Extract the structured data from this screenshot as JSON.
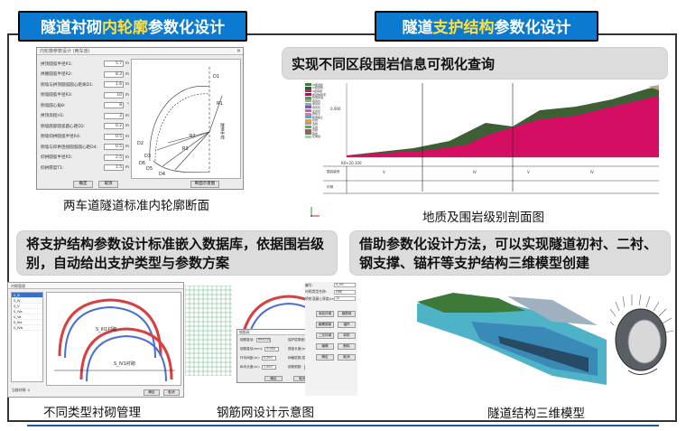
{
  "header": {
    "left": {
      "prefix": "隧道衬砌",
      "highlight": "内轮廓",
      "suffix": "参数化设计"
    },
    "right": {
      "prefix": "隧道",
      "highlight": "支护结构",
      "suffix": "参数化设计"
    }
  },
  "banners": {
    "geo": "实现不同区段围岩信息可视化查询",
    "db": "将支护结构参数设计标准嵌入数据库，依据围岩级别，自动给出支护类型与参数方案",
    "param": "借助参数化设计方法，可以实现隧道初衬、二衬、钢支撑、锚杆等支护结构三维模型创建"
  },
  "captions": {
    "contour": "两车道隧道标准内轮廓断面",
    "geo": "地质及围岩级别剖面图",
    "lining": "不同类型衬砌管理",
    "rebar": "钢筋网设计示意图",
    "model": "隧道结构三维模型"
  },
  "contour_dialog": {
    "title": "内轮廓参数设计 (两车道)",
    "rows": [
      {
        "label": "拱顶圆弧半径R1:",
        "value": "5.7",
        "unit": "m"
      },
      {
        "label": "拱腰圆弧半径R2:",
        "value": "8.2",
        "unit": "m"
      },
      {
        "label": "侧墙与拱顶圆弧圆心距离D1:",
        "value": "1.6",
        "unit": "m"
      },
      {
        "label": "侧墙圆弧半径R3:",
        "value": "10",
        "unit": "m"
      },
      {
        "label": "侧墙圆心角θ:",
        "value": "8",
        "unit": "°"
      },
      {
        "label": "拱顶高程H1:",
        "value": "2",
        "unit": "m"
      },
      {
        "label": "侧墙底部圆弧圆心距D2:",
        "value": "0.2",
        "unit": "m"
      },
      {
        "label": "侧墙仰拱圆弧半径R4:",
        "value": "0.5",
        "unit": "m"
      },
      {
        "label": "侧墙与仰拱连接圆弧圆心距D4:",
        "value": "0.5",
        "unit": "m"
      },
      {
        "label": "仰拱圆弧半径R5:",
        "value": "2.5",
        "unit": "m"
      },
      {
        "label": "仰拱厚度T1:",
        "value": "1.5",
        "unit": "m"
      }
    ],
    "drawing_labels": [
      "D1",
      "R1",
      "R2",
      "D2",
      "D3",
      "D4",
      "D5",
      "D6",
      "R3"
    ],
    "side_text": "隧道中线",
    "buttons": {
      "ok": "确定",
      "cancel": "取消",
      "contour_fig": "断面示意图"
    }
  },
  "geo_chart": {
    "legend": [
      "III级围岩",
      "IV级围岩",
      "V级围岩",
      "断层破碎带",
      "软弱夹层",
      "强风化",
      "中风化",
      "弱风化",
      "全风化",
      "残积土",
      "粉质黏土",
      "砂岩",
      "泥岩",
      "灰岩",
      "页岩",
      "砾岩",
      "花岗岩"
    ],
    "legend_colors": [
      "#3b7a3b",
      "#2e5e2e",
      "#d01a6a",
      "#c1005c",
      "#6a8e5a",
      "#8bb07a",
      "#9aa0c8",
      "#7d5fa0",
      "#b06ab0",
      "#ff66aa",
      "#58a3c8",
      "#e0a050",
      "#a0a0a0",
      "#50b050",
      "#c05050",
      "#707070",
      "#a0d0a0"
    ],
    "y_tick": "0.000",
    "x_tick": "K0+20.100",
    "table_row_labels": [
      "围岩级别",
      "衬砌"
    ],
    "grade_labels": [
      "V",
      "IV",
      "V",
      "IV"
    ]
  },
  "lining_ui": {
    "title": "衬砌管理",
    "list_items": [
      "S_III",
      "S_IV",
      "S_V",
      "S_IVa",
      "S_Va",
      "S_IIIa",
      "S_IVb"
    ],
    "labels": {
      "upper": "S_III1衬砌",
      "lower": "S_IV1衬砌"
    },
    "bottom_label": "当前衬砌: 0",
    "buttons": {
      "ok": "确定",
      "cancel": "取消"
    }
  },
  "rebar_dialog": {
    "title": "钢筋网",
    "rows": [
      {
        "label": "钢筋直径:",
        "value": "HRB335"
      },
      {
        "label": "钢筋直径(mm):",
        "value": "6.000"
      },
      {
        "label": "环向间距(m):",
        "value": "0.200"
      },
      {
        "label": "纵向长度(m):",
        "value": "1.000"
      },
      {
        "label": "保护层厚度(cm):",
        "value": "20.000"
      },
      {
        "label": "搭接长度(mm):",
        "value": "30.000"
      },
      {
        "label": "网格层数(层):",
        "value": "60"
      },
      {
        "label": "钢筋根数:",
        "value": "2"
      }
    ],
    "buttons": {
      "ok": "确定",
      "cancel": "取消"
    }
  },
  "props_panel": {
    "rows": [
      {
        "label": "编号:",
        "value": "S_III1"
      },
      {
        "label": "衬砌类型名称:",
        "value": "衬砌"
      },
      {
        "label": "喷射混凝土厚度(cm):",
        "value": "12"
      }
    ],
    "buttons": [
      "添加衬砌",
      "钢筋网",
      "格栅钢架",
      "锚杆",
      "二次衬砌",
      "仰拱",
      "编辑",
      "删除",
      "确定",
      "取消"
    ]
  }
}
